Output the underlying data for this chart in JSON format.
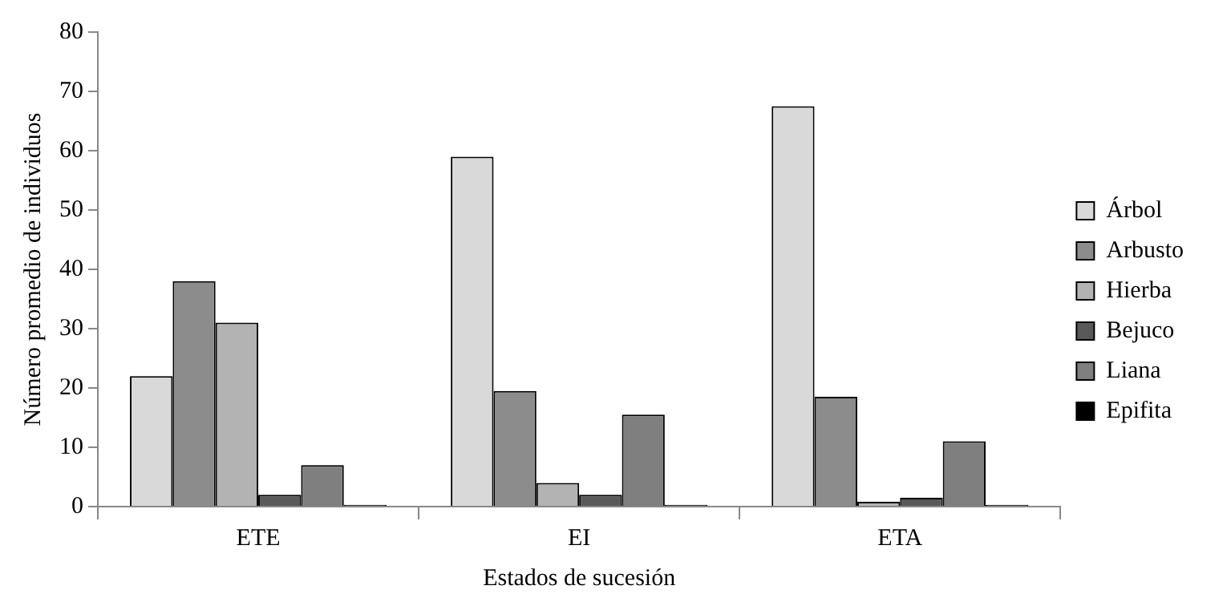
{
  "chart_data": {
    "type": "bar",
    "xlabel": "Estados de sucesión",
    "ylabel": "Número promedio de individuos",
    "categories": [
      "ETE",
      "EI",
      "ETA"
    ],
    "series": [
      {
        "name": "Árbol",
        "color": "#d9d9d9",
        "values": [
          22,
          59,
          67.5
        ]
      },
      {
        "name": "Arbusto",
        "color": "#8c8c8c",
        "values": [
          38,
          19.5,
          18.5
        ]
      },
      {
        "name": "Hierba",
        "color": "#b3b3b3",
        "values": [
          31,
          4,
          0.8
        ]
      },
      {
        "name": "Bejuco",
        "color": "#595959",
        "values": [
          2,
          2,
          1.5
        ]
      },
      {
        "name": "Liana",
        "color": "#7f7f7f",
        "values": [
          7,
          15.5,
          11
        ]
      },
      {
        "name": "Epifita",
        "color": "#000000",
        "values": [
          0.3,
          0.3,
          0.3
        ]
      }
    ],
    "ylim": [
      0,
      80
    ],
    "yticks": [
      0,
      10,
      20,
      30,
      40,
      50,
      60,
      70,
      80
    ],
    "grid": false,
    "legend": "right"
  }
}
